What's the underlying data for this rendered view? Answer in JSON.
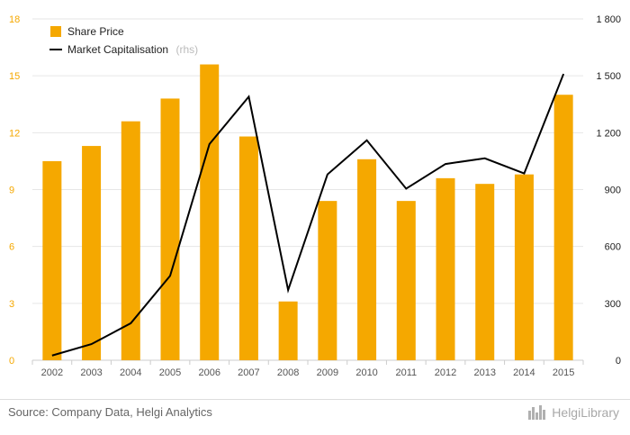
{
  "chart_data": {
    "type": "bar",
    "categories": [
      "2002",
      "2003",
      "2004",
      "2005",
      "2006",
      "2007",
      "2008",
      "2009",
      "2010",
      "2011",
      "2012",
      "2013",
      "2014",
      "2015"
    ],
    "series": [
      {
        "name": "Share Price",
        "type": "bar",
        "axis": "left",
        "color": "#f5a800",
        "values": [
          10.5,
          11.3,
          12.6,
          13.8,
          15.6,
          11.8,
          3.1,
          8.4,
          10.6,
          8.4,
          9.6,
          9.3,
          9.8,
          14.0
        ]
      },
      {
        "name": "Market Capitalisation",
        "type": "line",
        "axis": "right",
        "color": "#000000",
        "values": [
          25,
          85,
          195,
          445,
          1140,
          1390,
          370,
          980,
          1160,
          905,
          1035,
          1065,
          985,
          1510
        ]
      }
    ],
    "y_left": {
      "lim": [
        0,
        18
      ],
      "ticks": [
        "0",
        "3",
        "6",
        "9",
        "12",
        "15",
        "18"
      ]
    },
    "y_right": {
      "lim": [
        0,
        1800
      ],
      "ticks": [
        "0",
        "300",
        "600",
        "900",
        "1 200",
        "1 500",
        "1 800"
      ]
    },
    "grid": true,
    "legend": [
      {
        "label": "Share Price",
        "note": ""
      },
      {
        "label": "Market Capitalisation",
        "note": "(rhs)"
      }
    ],
    "legend_position": "top-left"
  },
  "footer": {
    "source": "Source: Company Data, Helgi Analytics",
    "brand": "HelgiLibrary"
  }
}
